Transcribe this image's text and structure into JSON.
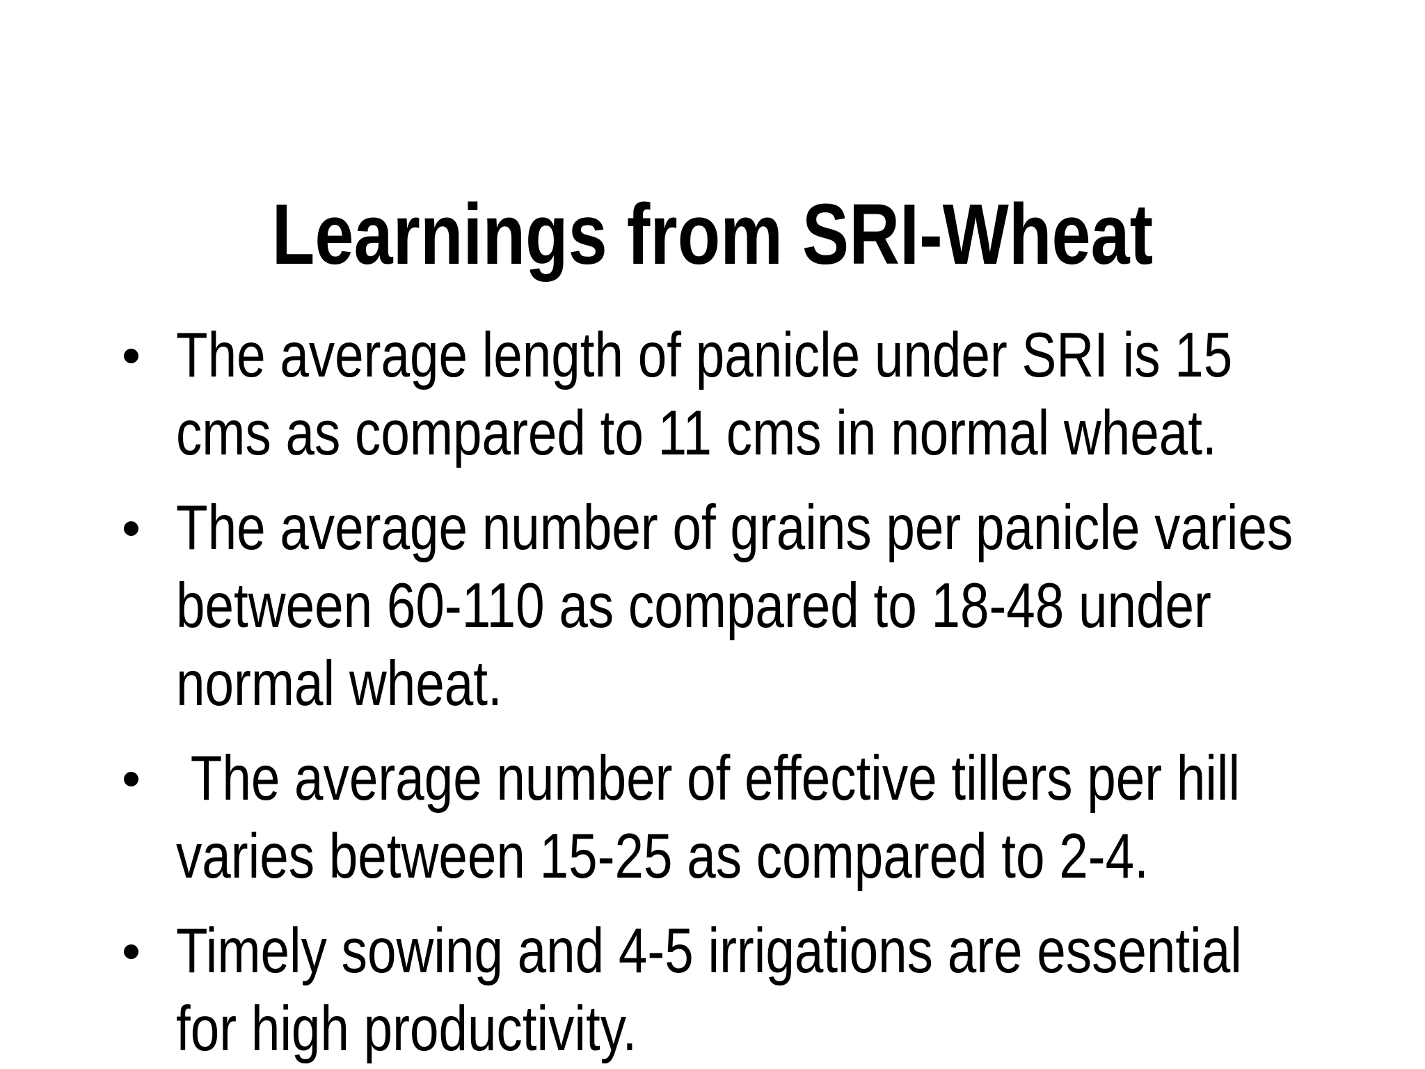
{
  "slide": {
    "title": "Learnings from SRI-Wheat",
    "bullets": [
      {
        "lines": [
          "The average length of panicle under SRI is 15",
          "cms as compared to 11 cms in normal wheat."
        ]
      },
      {
        "lines": [
          "The average number of grains per panicle varies",
          "between 60-110 as compared to 18-48 under",
          "normal wheat."
        ]
      },
      {
        "lines": [
          " The average number of effective tillers per hill",
          "varies between 15-25 as compared to 2-4."
        ]
      },
      {
        "lines": [
          "Timely sowing and 4-5 irrigations are essential",
          "for high productivity."
        ]
      }
    ],
    "colors": {
      "background": "#ffffff",
      "text": "#000000",
      "bullet_marker": "#000000"
    }
  }
}
